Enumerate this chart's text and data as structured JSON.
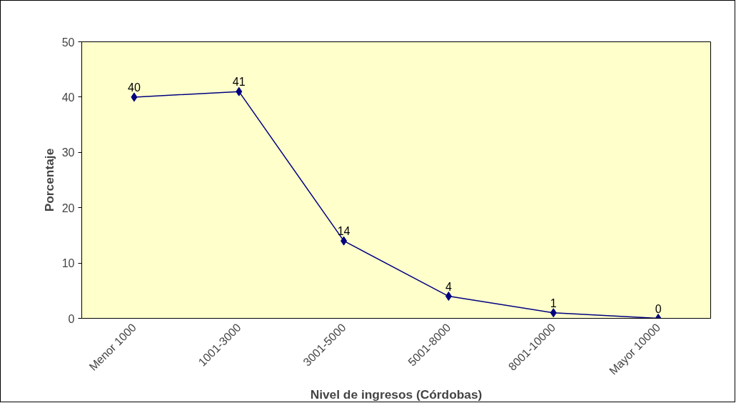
{
  "chart_data": {
    "type": "line",
    "xlabel": "Nivel de ingresos (Córdobas)",
    "ylabel": "Porcentaje",
    "categories": [
      "Menor 1000",
      "1001-3000",
      "3001-5000",
      "5001-8000",
      "8001-10000",
      "Mayor 10000"
    ],
    "series": [
      {
        "color": "#000080",
        "values": [
          40,
          41,
          14,
          4,
          1,
          0
        ]
      }
    ],
    "ylim": [
      0,
      50
    ],
    "yticks": [
      0,
      10,
      20,
      30,
      40,
      50
    ],
    "grid": false,
    "marker": "diamond",
    "line_style": "solid",
    "data_labels": true
  }
}
